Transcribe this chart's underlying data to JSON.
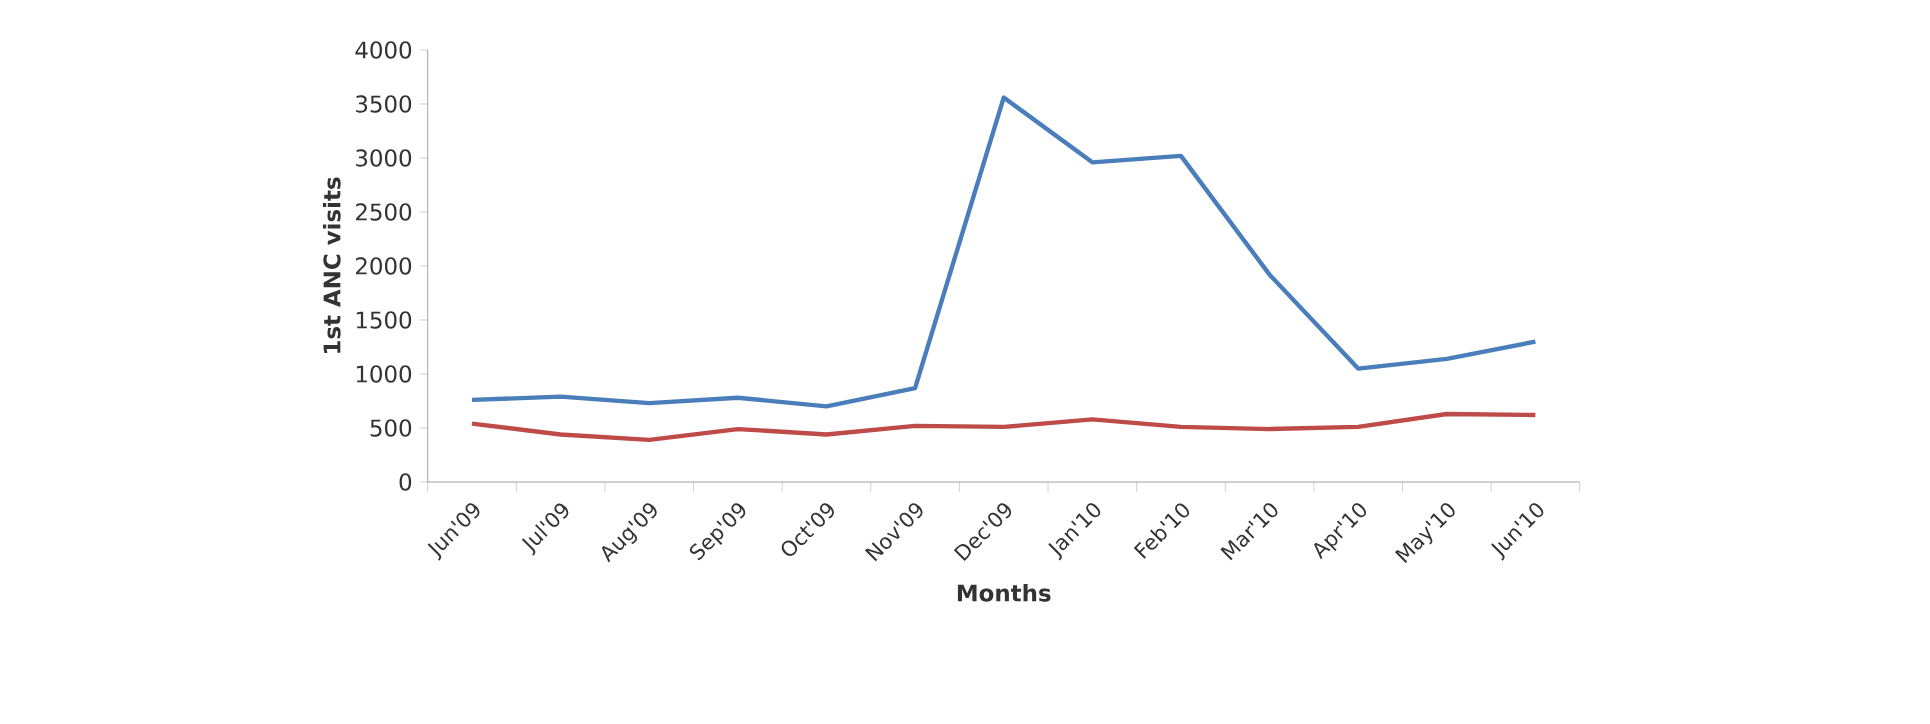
{
  "chart_data": {
    "type": "line",
    "xlabel": "Months",
    "ylabel": "1st ANC visits",
    "categories": [
      "Jun'09",
      "Jul'09",
      "Aug'09",
      "Sep'09",
      "Oct'09",
      "Nov'09",
      "Dec'09",
      "Jan'10",
      "Feb'10",
      "Mar'10",
      "Apr'10",
      "May'10",
      "Jun'10"
    ],
    "series": [
      {
        "color": "#4a7ebb",
        "values": [
          760,
          790,
          730,
          780,
          700,
          870,
          3560,
          2960,
          3020,
          1920,
          1050,
          1140,
          1300
        ]
      },
      {
        "color": "#be4b48",
        "values": [
          540,
          440,
          390,
          490,
          440,
          520,
          510,
          580,
          510,
          490,
          510,
          630,
          620
        ]
      }
    ],
    "ylim": [
      0,
      4000
    ],
    "yticks": [
      0,
      500,
      1000,
      1500,
      2000,
      2500,
      3000,
      3500,
      4000
    ],
    "grid": false,
    "marker": "none",
    "line_style": "solid"
  }
}
